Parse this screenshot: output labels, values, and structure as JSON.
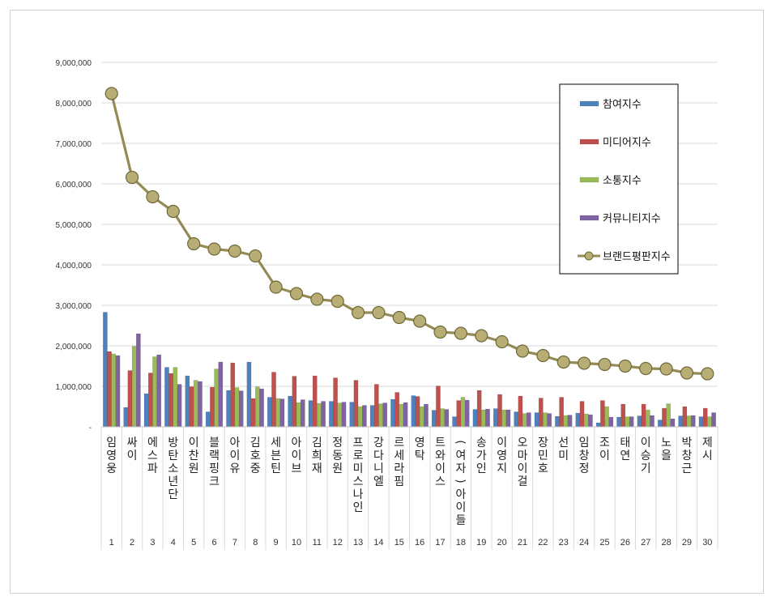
{
  "chart_data": {
    "type": "bar",
    "combo": "bar+line",
    "title": "",
    "xlabel": "",
    "ylabel": "",
    "ylim": [
      0,
      9000000
    ],
    "yticks": [
      "-",
      "1,000,000",
      "2,000,000",
      "3,000,000",
      "4,000,000",
      "5,000,000",
      "6,000,000",
      "7,000,000",
      "8,000,000",
      "9,000,000"
    ],
    "grid": "horizontal",
    "legend_position": "right",
    "categories": [
      {
        "rank": "1",
        "name": "임영웅"
      },
      {
        "rank": "2",
        "name": "싸이"
      },
      {
        "rank": "3",
        "name": "에스파"
      },
      {
        "rank": "4",
        "name": "방탄소년단"
      },
      {
        "rank": "5",
        "name": "이찬원"
      },
      {
        "rank": "6",
        "name": "블랙핑크"
      },
      {
        "rank": "7",
        "name": "아이유"
      },
      {
        "rank": "8",
        "name": "김호중"
      },
      {
        "rank": "9",
        "name": "세븐틴"
      },
      {
        "rank": "10",
        "name": "아이브"
      },
      {
        "rank": "11",
        "name": "김희재"
      },
      {
        "rank": "12",
        "name": "정동원"
      },
      {
        "rank": "13",
        "name": "프로미스나인"
      },
      {
        "rank": "14",
        "name": "강다니엘"
      },
      {
        "rank": "15",
        "name": "르세라핌"
      },
      {
        "rank": "16",
        "name": "영탁"
      },
      {
        "rank": "17",
        "name": "트와이스"
      },
      {
        "rank": "18",
        "name": "(여자)아이들"
      },
      {
        "rank": "19",
        "name": "송가인"
      },
      {
        "rank": "20",
        "name": "이영지"
      },
      {
        "rank": "21",
        "name": "오마이걸"
      },
      {
        "rank": "22",
        "name": "장민호"
      },
      {
        "rank": "23",
        "name": "선미"
      },
      {
        "rank": "24",
        "name": "임창정"
      },
      {
        "rank": "25",
        "name": "조이"
      },
      {
        "rank": "26",
        "name": "태연"
      },
      {
        "rank": "27",
        "name": "이승기"
      },
      {
        "rank": "28",
        "name": "노을"
      },
      {
        "rank": "29",
        "name": "박창근"
      },
      {
        "rank": "30",
        "name": "제시"
      }
    ],
    "series": [
      {
        "name": "참여지수",
        "kind": "bar",
        "color": "#4f81bd",
        "values": [
          2830000,
          480000,
          820000,
          1470000,
          1260000,
          370000,
          900000,
          1600000,
          730000,
          760000,
          650000,
          630000,
          610000,
          530000,
          680000,
          770000,
          410000,
          250000,
          430000,
          450000,
          370000,
          350000,
          260000,
          340000,
          100000,
          240000,
          270000,
          170000,
          270000,
          250000
        ]
      },
      {
        "name": "미디어지수",
        "kind": "bar",
        "color": "#c0504d",
        "values": [
          1860000,
          1390000,
          1330000,
          1320000,
          990000,
          980000,
          1580000,
          700000,
          1350000,
          1250000,
          1260000,
          1210000,
          1150000,
          1050000,
          850000,
          750000,
          1010000,
          650000,
          900000,
          800000,
          760000,
          710000,
          730000,
          630000,
          650000,
          560000,
          560000,
          460000,
          500000,
          460000
        ]
      },
      {
        "name": "소통지수",
        "kind": "bar",
        "color": "#9bbb59",
        "values": [
          1800000,
          1990000,
          1730000,
          1470000,
          1150000,
          1430000,
          970000,
          990000,
          700000,
          600000,
          580000,
          590000,
          500000,
          570000,
          560000,
          500000,
          450000,
          730000,
          420000,
          420000,
          330000,
          350000,
          280000,
          320000,
          500000,
          250000,
          420000,
          570000,
          270000,
          250000
        ]
      },
      {
        "name": "커뮤니티지수",
        "kind": "bar",
        "color": "#8064a2",
        "values": [
          1760000,
          2300000,
          1780000,
          1050000,
          1120000,
          1600000,
          890000,
          940000,
          690000,
          670000,
          630000,
          610000,
          530000,
          590000,
          600000,
          560000,
          430000,
          660000,
          440000,
          420000,
          350000,
          330000,
          290000,
          300000,
          240000,
          250000,
          280000,
          200000,
          280000,
          350000
        ]
      },
      {
        "name": "브랜드평판지수",
        "kind": "line",
        "color": "#948a54",
        "values": [
          8230000,
          6160000,
          5680000,
          5320000,
          4520000,
          4390000,
          4340000,
          4220000,
          3450000,
          3290000,
          3150000,
          3100000,
          2820000,
          2820000,
          2700000,
          2610000,
          2340000,
          2310000,
          2250000,
          2100000,
          1870000,
          1760000,
          1600000,
          1570000,
          1540000,
          1500000,
          1440000,
          1430000,
          1330000,
          1310000
        ]
      }
    ]
  }
}
